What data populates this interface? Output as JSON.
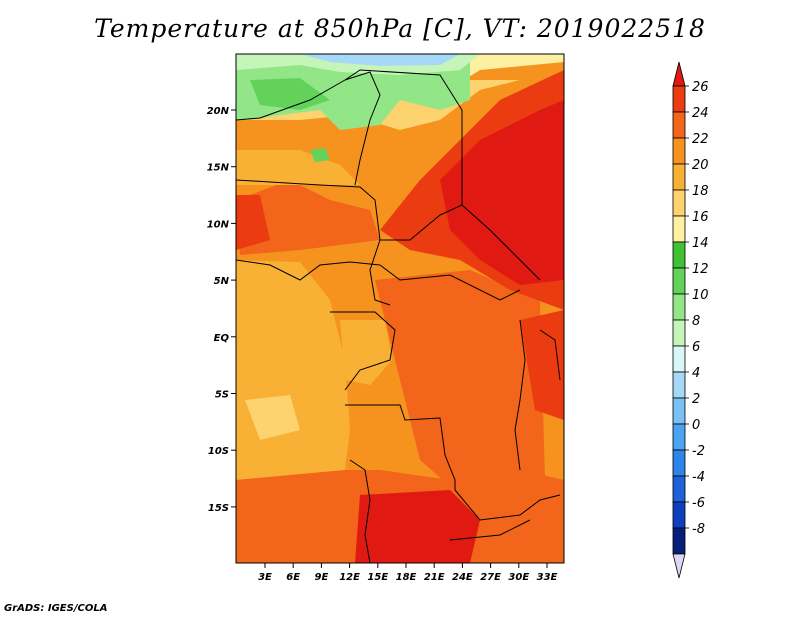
{
  "title": "Temperature at 850hPa [C], VT: 2019022518",
  "credit": "GrADS: IGES/COLA",
  "map": {
    "lon_labels": [
      "3E",
      "6E",
      "9E",
      "12E",
      "15E",
      "18E",
      "21E",
      "24E",
      "27E",
      "30E",
      "33E"
    ],
    "lat_labels": [
      "20N",
      "15N",
      "10N",
      "5N",
      "EQ",
      "5S",
      "10S",
      "15S"
    ]
  },
  "colorbar": {
    "labels": [
      "26",
      "24",
      "22",
      "20",
      "18",
      "16",
      "14",
      "12",
      "10",
      "8",
      "6",
      "4",
      "2",
      "0",
      "-2",
      "-4",
      "-6",
      "-8"
    ],
    "colors": [
      "#e01a12",
      "#eb3b10",
      "#f2651a",
      "#f6921e",
      "#f8b035",
      "#fcd36e",
      "#fdf0a0",
      "#3ec234",
      "#62d25a",
      "#93e688",
      "#c5f5b8",
      "#d7f8f8",
      "#a7d8f8",
      "#7ac0f5",
      "#4aa4f0",
      "#2f84e8",
      "#1d62d8",
      "#0d3fbf",
      "#061f7a"
    ],
    "arrow_low": "#dcd8f4"
  }
}
